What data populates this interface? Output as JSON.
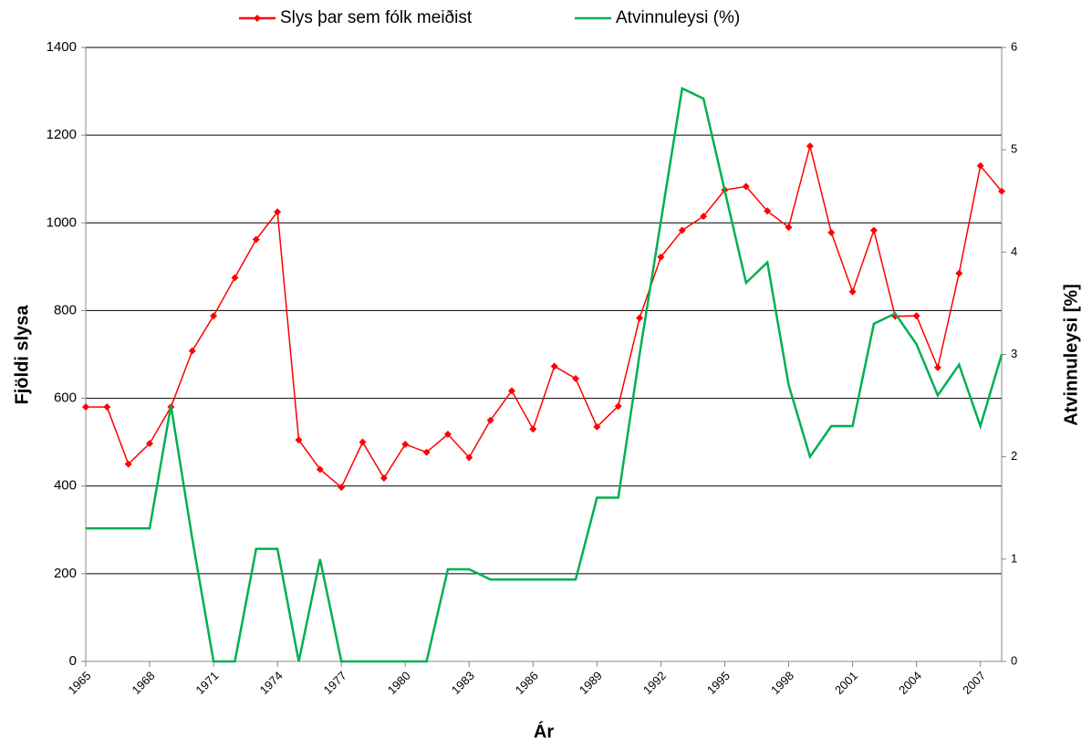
{
  "chart_data": {
    "type": "line",
    "legend": "top",
    "x_label": "Ár",
    "y_label": "Fjöldi slysa",
    "y2_label": "Atvinnuleysi [%]",
    "x": [
      1965,
      1966,
      1967,
      1968,
      1969,
      1970,
      1971,
      1972,
      1973,
      1974,
      1975,
      1976,
      1977,
      1978,
      1979,
      1980,
      1981,
      1982,
      1983,
      1984,
      1985,
      1986,
      1987,
      1988,
      1989,
      1990,
      1991,
      1992,
      1993,
      1994,
      1995,
      1996,
      1997,
      1998,
      1999,
      2000,
      2001,
      2002,
      2003,
      2004,
      2005,
      2006,
      2007,
      2008
    ],
    "xlim": [
      1965,
      2008
    ],
    "xticks": [
      1965,
      1968,
      1971,
      1974,
      1977,
      1980,
      1983,
      1986,
      1989,
      1992,
      1995,
      1998,
      2001,
      2004,
      2007
    ],
    "ylim": [
      0,
      1400
    ],
    "yticks": [
      0,
      200,
      400,
      600,
      800,
      1000,
      1200,
      1400
    ],
    "y2lim": [
      0,
      6
    ],
    "y2ticks": [
      0,
      1,
      2,
      3,
      4,
      5,
      6
    ],
    "grid": true,
    "series": [
      {
        "name": "Slys þar sem fólk meiðist",
        "color": "#ff0000",
        "marker": "diamond",
        "values": [
          580,
          580,
          450,
          497,
          580,
          708,
          788,
          875,
          962,
          1025,
          505,
          438,
          397,
          500,
          418,
          495,
          477,
          518,
          465,
          550,
          617,
          530,
          673,
          645,
          535,
          582,
          783,
          922,
          983,
          1015,
          1075,
          1083,
          1027,
          990,
          1175,
          978,
          843,
          983,
          787,
          788,
          670,
          885,
          1130,
          1072
        ]
      },
      {
        "name": "Atvinnuleysi (%)",
        "color": "#00b050",
        "axis": "y2",
        "values": [
          1.3,
          1.3,
          1.3,
          1.3,
          2.5,
          1.2,
          0,
          0,
          1.1,
          1.1,
          0,
          1.0,
          0,
          0,
          0,
          0,
          0,
          0.9,
          0.9,
          0.8,
          0.8,
          0.8,
          0.8,
          0.8,
          1.6,
          1.6,
          3.0,
          4.3,
          5.6,
          5.5,
          4.6,
          3.7,
          3.9,
          2.7,
          2.0,
          2.3,
          2.3,
          3.3,
          3.4,
          3.1,
          2.6,
          2.9,
          2.3,
          3.0
        ]
      }
    ]
  }
}
